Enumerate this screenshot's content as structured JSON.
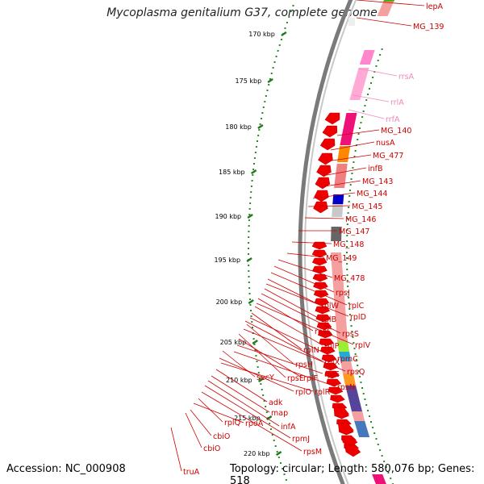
{
  "title": "Mycoplasma genitalium G37, complete genome",
  "accession": "Accession: NC_000908",
  "topology": "Topology: circular; Length: 580,076 bp; Genes: 518",
  "colors": {
    "backbone": "#8c8c8c",
    "tick": "#2a8a2a",
    "cds": "#ee0000",
    "rna": "#ff99cc",
    "label": "#cc0000",
    "rna_label": "#ee88bb"
  },
  "ticks": [
    "170 kbp",
    "175 kbp",
    "180 kbp",
    "185 kbp",
    "190 kbp",
    "195 kbp",
    "200 kbp",
    "205 kbp",
    "210 kbp",
    "215 kbp",
    "220 kbp"
  ],
  "gene_labels": [
    "lepA",
    "MG_139",
    "rrsA",
    "rrlA",
    "rrfA",
    "MG_140",
    "nusA",
    "MG_477",
    "infB",
    "MG_143",
    "MG_144",
    "MG_145",
    "MG_146",
    "MG_147",
    "MG_148",
    "MG_149",
    "MG_478",
    "rpsJ",
    "rplC",
    "rplW",
    "rplD",
    "rplB",
    "rpsS",
    "rpsC",
    "rplV",
    "rplP",
    "rplN",
    "rpmC",
    "rpsH",
    "rplX",
    "rpsQ",
    "secY",
    "rpsE",
    "rplF",
    "rplE",
    "rpsN",
    "rplO",
    "rplR",
    "adk",
    "map",
    "infA",
    "rpmJ",
    "rpsM",
    "rplQ",
    "rpoA",
    "cbiO",
    "cbiO",
    "truA"
  ]
}
